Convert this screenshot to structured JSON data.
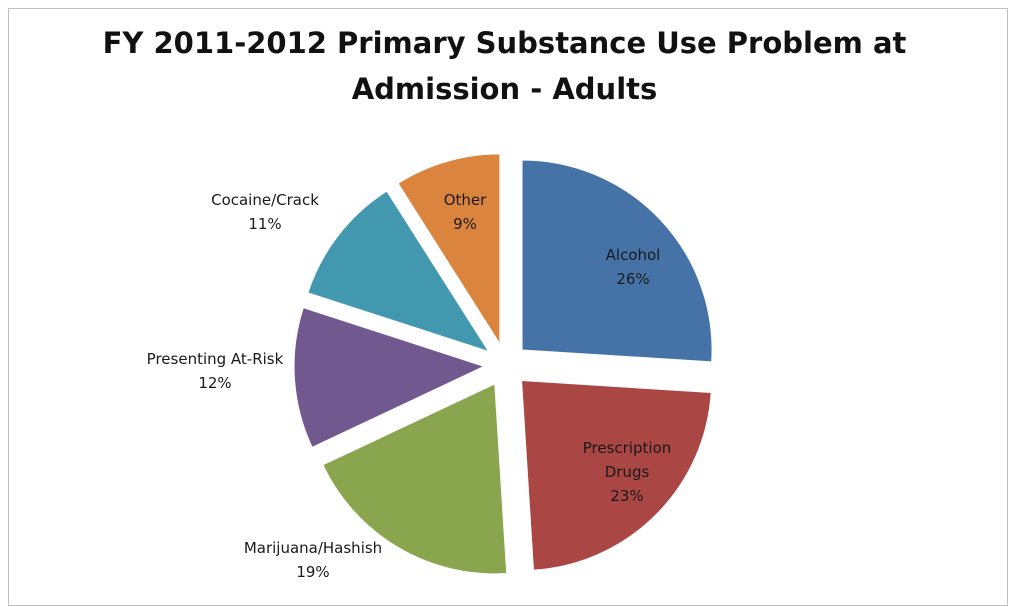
{
  "chart_data": {
    "type": "pie",
    "title": "FY 2011-2012 Primary Substance Use Problem at\nAdmission - Adults",
    "exploded": true,
    "slices": [
      {
        "label": "Alcohol",
        "value": 26,
        "value_label": "26%",
        "color": "#4572a7"
      },
      {
        "label": "Prescription\nDrugs",
        "value": 23,
        "value_label": "23%",
        "color": "#aa4643"
      },
      {
        "label": "Marijuana/Hashish",
        "value": 19,
        "value_label": "19%",
        "color": "#89a54e"
      },
      {
        "label": "Presenting At-Risk",
        "value": 12,
        "value_label": "12%",
        "color": "#71588f"
      },
      {
        "label": "Cocaine/Crack",
        "value": 11,
        "value_label": "11%",
        "color": "#4198af"
      },
      {
        "label": "Other",
        "value": 9,
        "value_label": "9%",
        "color": "#db843d"
      }
    ]
  }
}
